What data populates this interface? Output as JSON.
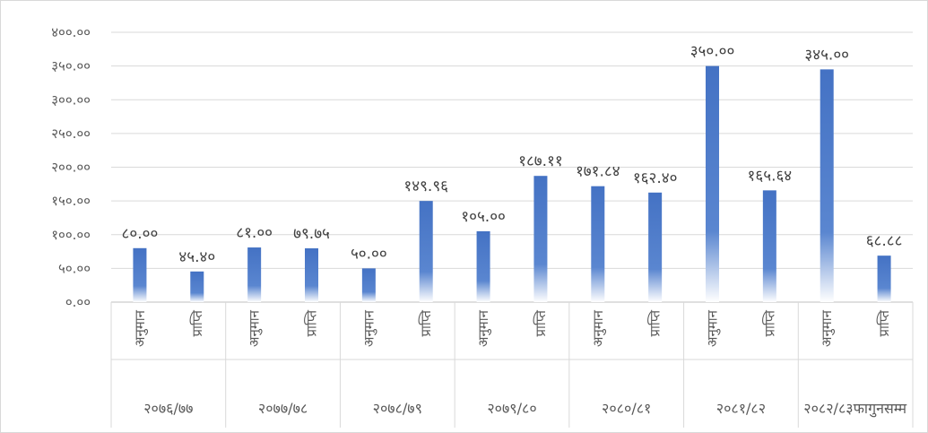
{
  "chart_data": {
    "type": "bar",
    "title": "",
    "xlabel": "",
    "ylabel": "",
    "ylim": [
      0,
      400
    ],
    "yticks": [
      "०.००",
      "५०.००",
      "१००.००",
      "१५०.००",
      "२००.००",
      "२५०.००",
      "३००.००",
      "३५०.००",
      "४००.००"
    ],
    "grid": true,
    "legend": "none",
    "bar_color": "#4472c4",
    "groups": [
      {
        "label": "२०७६/७७",
        "bars": [
          {
            "category": "अनुमान",
            "value": 80.0,
            "label": "८०.००"
          },
          {
            "category": "प्राप्ति",
            "value": 45.4,
            "label": "४५.४०"
          }
        ]
      },
      {
        "label": "२०७७/७८",
        "bars": [
          {
            "category": "अनुमान",
            "value": 81.0,
            "label": "८१.००"
          },
          {
            "category": "प्राप्ति",
            "value": 79.75,
            "label": "७९.७५"
          }
        ]
      },
      {
        "label": "२०७८/७९",
        "bars": [
          {
            "category": "अनुमान",
            "value": 50.0,
            "label": "५०.००"
          },
          {
            "category": "प्राप्ति",
            "value": 149.96,
            "label": "१४९.९६"
          }
        ]
      },
      {
        "label": "२०७९/८०",
        "bars": [
          {
            "category": "अनुमान",
            "value": 105.0,
            "label": "१०५.००"
          },
          {
            "category": "प्राप्ति",
            "value": 187.11,
            "label": "१८७.११"
          }
        ]
      },
      {
        "label": "२०८०/८१",
        "bars": [
          {
            "category": "अनुमान",
            "value": 171.84,
            "label": "१७१.८४"
          },
          {
            "category": "प्राप्ति",
            "value": 162.4,
            "label": "१६२.४०"
          }
        ]
      },
      {
        "label": "२०८१/८२",
        "bars": [
          {
            "category": "अनुमान",
            "value": 350.0,
            "label": "३५०.००"
          },
          {
            "category": "प्राप्ति",
            "value": 165.64,
            "label": "१६५.६४"
          }
        ]
      },
      {
        "label": "२०८२/८३फागुनसम्म",
        "bars": [
          {
            "category": "अनुमान",
            "value": 345.0,
            "label": "३४५.००"
          },
          {
            "category": "प्राप्ति",
            "value": 68.88,
            "label": "६८.८८"
          }
        ]
      }
    ]
  }
}
